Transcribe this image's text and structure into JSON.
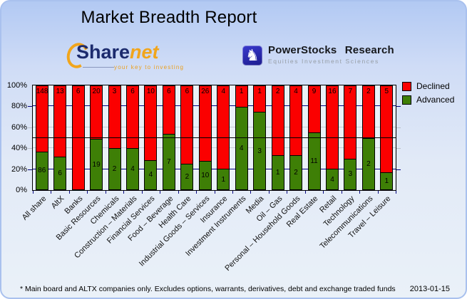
{
  "header": {
    "title": "Market Breadth Report"
  },
  "logos": {
    "sharenet": {
      "brand_part1": "Share",
      "brand_part2": "net",
      "tagline": "your key to investing",
      "navy": "#1c2b6e",
      "orange": "#f1a51c"
    },
    "powerstocks": {
      "name": "PowerStocks Research",
      "subtitle": "Equities Investment Sciences",
      "icon_glyph": "♞",
      "icon_color": "#2525b0"
    }
  },
  "chart_data": {
    "type": "bar",
    "stacked": "percent",
    "title": "Market Breadth Report",
    "categories": [
      "All share",
      "AltX",
      "Banks",
      "Basic Resources",
      "Chemicals",
      "Construction – Materials",
      "Financial Services",
      "Food – Beverage",
      "Health Care",
      "Industrial Goods – Services",
      "Insurance",
      "Investment Instruments",
      "Media",
      "Oil – Gas",
      "Personal – Household Goods",
      "Real Estate",
      "Retail",
      "Technology",
      "Telecommunications",
      "Travel – Leisure"
    ],
    "series": [
      {
        "name": "Declined",
        "color": "#fb0000",
        "values": [
          148,
          13,
          6,
          20,
          3,
          6,
          10,
          6,
          6,
          26,
          4,
          1,
          1,
          2,
          4,
          9,
          16,
          7,
          2,
          5
        ]
      },
      {
        "name": "Advanced",
        "color": "#3e7f06",
        "values": [
          86,
          6,
          0,
          19,
          2,
          4,
          4,
          7,
          2,
          10,
          1,
          4,
          3,
          1,
          2,
          11,
          4,
          3,
          2,
          1
        ]
      }
    ],
    "y_ticks": [
      "0%",
      "20%",
      "40%",
      "60%",
      "80%",
      "100%"
    ],
    "ylim": [
      0,
      100
    ],
    "reference_line_pct": 50,
    "legend_position": "top-right",
    "gridlines": [
      {
        "pct": 20,
        "color": "#000080"
      },
      {
        "pct": 40,
        "color": "#c6ccd4"
      },
      {
        "pct": 60,
        "color": "#c6ccd4"
      },
      {
        "pct": 80,
        "color": "#000080"
      }
    ],
    "colors": {
      "plot_background": "#eaf1f8",
      "reference_line": "#000000",
      "axis": "#000000",
      "tick": "#000080"
    }
  },
  "footer": {
    "note": "* Main board and ALTX companies only. Excludes options, warrants, derivatives, debt and exchange traded funds",
    "date": "2013-01-15"
  }
}
